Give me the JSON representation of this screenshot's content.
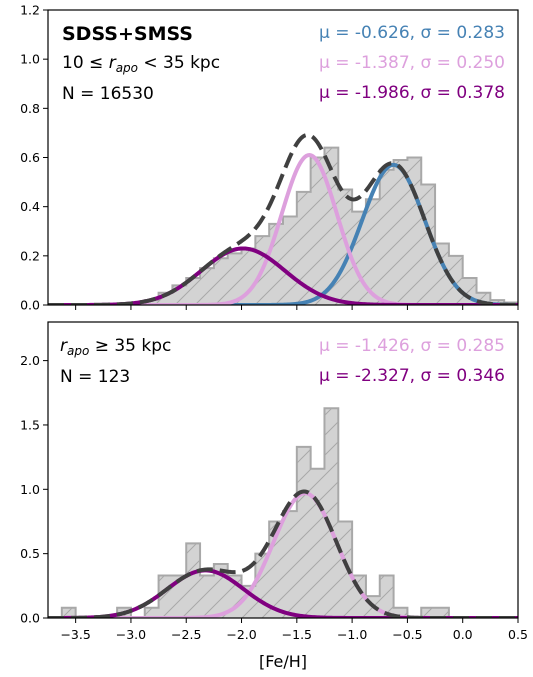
{
  "chart_data": [
    {
      "type": "histogram",
      "panel": "top",
      "title": "SDSS+SMSS",
      "subtitle": "10 ≤ r_apo < 35 kpc",
      "count_label": "N = 16530",
      "xlabel": "[Fe/H]",
      "ylabel": "",
      "xlim": [
        -3.75,
        0.5
      ],
      "ylim": [
        0,
        1.2
      ],
      "yticks": [
        0.0,
        0.2,
        0.4,
        0.6,
        0.8,
        1.0,
        1.2
      ],
      "ytick_labels": [
        "0.0",
        "0.2",
        "0.4",
        "0.6",
        "0.8",
        "1.0",
        "1.2"
      ],
      "bin_edges": [
        -3.75,
        -3.625,
        -3.5,
        -3.375,
        -3.25,
        -3.125,
        -3.0,
        -2.875,
        -2.75,
        -2.625,
        -2.5,
        -2.375,
        -2.25,
        -2.125,
        -2.0,
        -1.875,
        -1.75,
        -1.625,
        -1.5,
        -1.375,
        -1.25,
        -1.125,
        -1.0,
        -0.875,
        -0.75,
        -0.625,
        -0.5,
        -0.375,
        -0.25,
        -0.125,
        0.0,
        0.125,
        0.25,
        0.375,
        0.5
      ],
      "counts": [
        0.0,
        0.0,
        0.0,
        0.0,
        0.0,
        0.005,
        0.01,
        0.02,
        0.05,
        0.08,
        0.11,
        0.15,
        0.19,
        0.21,
        0.23,
        0.28,
        0.33,
        0.36,
        0.46,
        0.6,
        0.64,
        0.47,
        0.38,
        0.43,
        0.55,
        0.59,
        0.6,
        0.49,
        0.25,
        0.2,
        0.11,
        0.05,
        0.02,
        0.01
      ],
      "components": [
        {
          "mu": -0.626,
          "sigma": 0.283,
          "amplitude": 0.57,
          "color": "#4682b4",
          "label": "μ = -0.626, σ = 0.283"
        },
        {
          "mu": -1.387,
          "sigma": 0.25,
          "amplitude": 0.61,
          "color": "#dda0dd",
          "label": "μ = -1.387, σ = 0.250"
        },
        {
          "mu": -1.986,
          "sigma": 0.378,
          "amplitude": 0.23,
          "color": "#800080",
          "label": "μ = -1.986, σ = 0.378"
        }
      ],
      "total_color": "#404040",
      "hist_color": "#d3d3d3",
      "legend": "top-right text annotations"
    },
    {
      "type": "histogram",
      "panel": "bottom",
      "subtitle": "r_apo ≥ 35 kpc",
      "count_label": "N = 123",
      "xlabel": "[Fe/H]",
      "ylabel": "",
      "xlim": [
        -3.75,
        0.5
      ],
      "ylim": [
        0,
        2.3
      ],
      "xticks": [
        -3.5,
        -3.0,
        -2.5,
        -2.0,
        -1.5,
        -1.0,
        -0.5,
        0.0,
        0.5
      ],
      "xtick_labels": [
        "−3.5",
        "−3.0",
        "−2.5",
        "−2.0",
        "−1.5",
        "−1.0",
        "−0.5",
        "0.0",
        "0.5"
      ],
      "yticks": [
        0.0,
        0.5,
        1.0,
        1.5,
        2.0
      ],
      "ytick_labels": [
        "0.0",
        "0.5",
        "1.0",
        "1.5",
        "2.0"
      ],
      "bin_edges": [
        -3.75,
        -3.625,
        -3.5,
        -3.375,
        -3.25,
        -3.125,
        -3.0,
        -2.875,
        -2.75,
        -2.625,
        -2.5,
        -2.375,
        -2.25,
        -2.125,
        -2.0,
        -1.875,
        -1.75,
        -1.625,
        -1.5,
        -1.375,
        -1.25,
        -1.125,
        -1.0,
        -0.875,
        -0.75,
        -0.625,
        -0.5,
        -0.375,
        -0.25,
        -0.125,
        0.0,
        0.125,
        0.25,
        0.375,
        0.5
      ],
      "counts": [
        0.0,
        0.08,
        0.0,
        0.0,
        0.0,
        0.08,
        0.0,
        0.08,
        0.33,
        0.33,
        0.58,
        0.33,
        0.42,
        0.33,
        0.25,
        0.5,
        0.75,
        0.83,
        1.33,
        1.16,
        1.63,
        0.75,
        0.33,
        0.17,
        0.33,
        0.08,
        0.0,
        0.08,
        0.08,
        0.0,
        0.0,
        0.0,
        0.0,
        0.0
      ],
      "components": [
        {
          "mu": -1.426,
          "sigma": 0.285,
          "amplitude": 0.97,
          "color": "#dda0dd",
          "label": "μ = -1.426, σ = 0.285"
        },
        {
          "mu": -2.327,
          "sigma": 0.346,
          "amplitude": 0.37,
          "color": "#800080",
          "label": "μ = -2.327, σ = 0.346"
        }
      ],
      "total_color": "#404040",
      "hist_color": "#d3d3d3",
      "legend": "top-right text annotations"
    }
  ]
}
